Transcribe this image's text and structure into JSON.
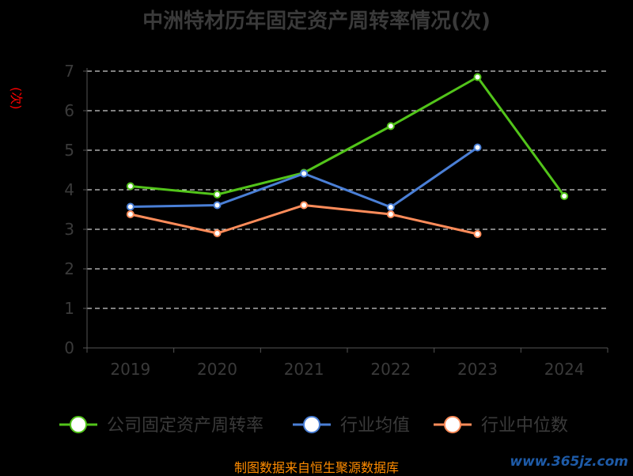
{
  "chart_data": {
    "type": "line",
    "title": "中洲特材历年固定资产周转率情况(次)",
    "ylabel": "(次)",
    "categories": [
      "2019",
      "2020",
      "2021",
      "2022",
      "2023",
      "2024"
    ],
    "y_ticks": [
      "0",
      "1",
      "2",
      "3",
      "4",
      "5",
      "6",
      "7"
    ],
    "ylim": [
      0,
      7
    ],
    "grid": true,
    "legend_position": "bottom",
    "series": [
      {
        "name": "公司固定资产周转率",
        "color": "#52c41a",
        "values": [
          4.09,
          3.88,
          4.43,
          5.61,
          6.85,
          3.84
        ]
      },
      {
        "name": "行业均值",
        "color": "#4a7fd6",
        "values": [
          3.57,
          3.61,
          4.41,
          3.56,
          5.07,
          null
        ]
      },
      {
        "name": "行业中位数",
        "color": "#ff8c5a",
        "values": [
          3.38,
          2.9,
          3.61,
          3.38,
          2.88,
          null
        ]
      }
    ],
    "source": "制图数据来自恒生聚源数据库",
    "watermark": "www.365jz.com"
  }
}
